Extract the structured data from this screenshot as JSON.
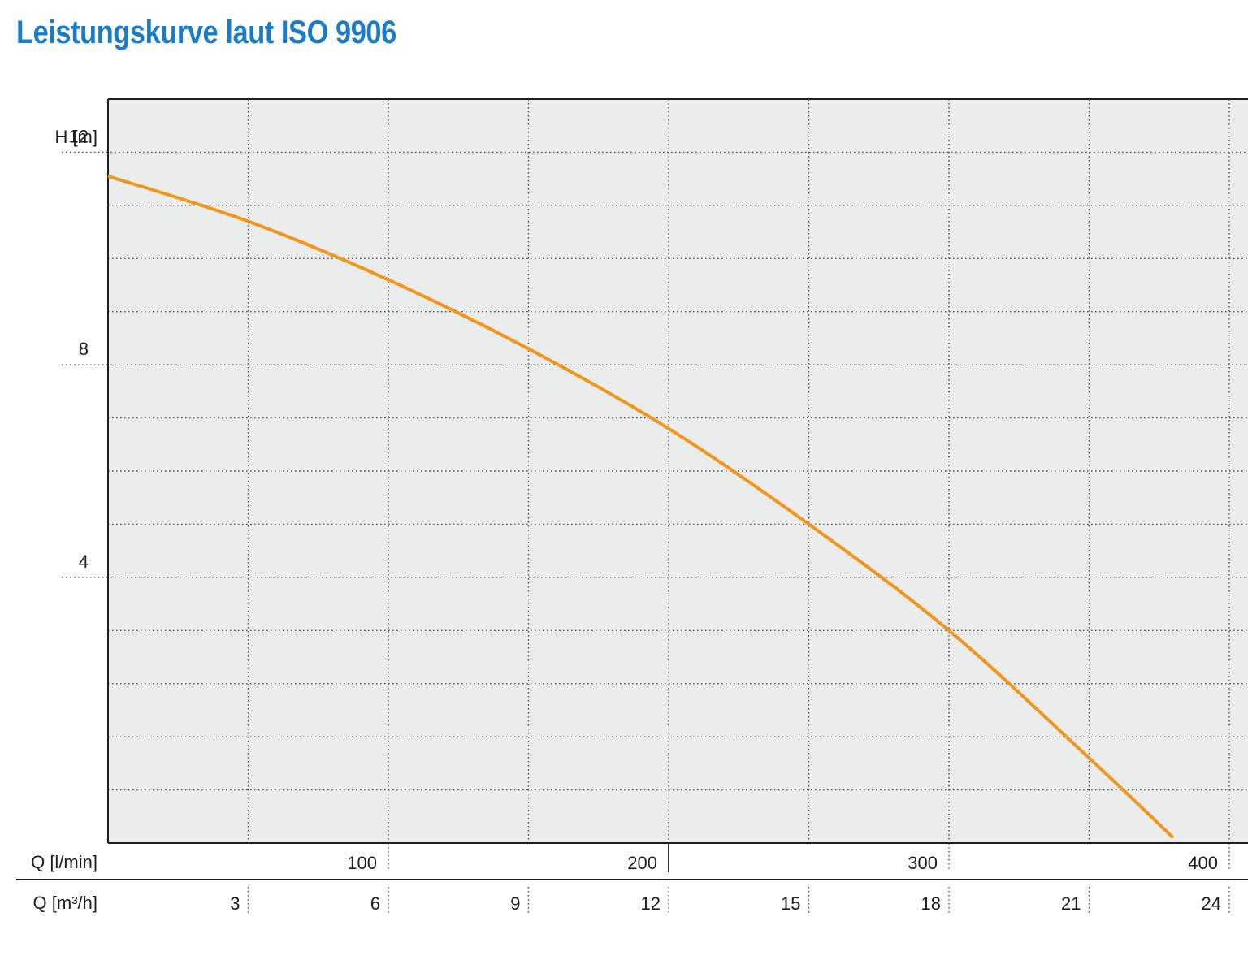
{
  "title": "Leistungskurve laut ISO 9906",
  "chart_data": {
    "type": "line",
    "title": "Leistungskurve laut ISO 9906",
    "ylabel": "H [m]",
    "xlabel_lmin": "Q [l/min]",
    "xlabel_m3h": "Q [m³/h]",
    "ylim": [
      -1,
      13
    ],
    "xlim_m3h": [
      0,
      24.4
    ],
    "y_ticks": [
      4,
      8,
      12
    ],
    "x_ticks_lmin": [
      100,
      200,
      300,
      400
    ],
    "x_ticks_m3h": [
      3,
      6,
      9,
      12,
      15,
      18,
      21,
      24
    ],
    "grid": true,
    "series": [
      {
        "color": "#f3941b",
        "x_m3h": [
          0,
          3,
          6,
          9,
          12,
          15,
          18,
          21,
          22.8
        ],
        "y_m": [
          11.55,
          10.7,
          9.6,
          8.3,
          6.8,
          5.0,
          3.0,
          0.6,
          -0.9
        ]
      }
    ]
  }
}
